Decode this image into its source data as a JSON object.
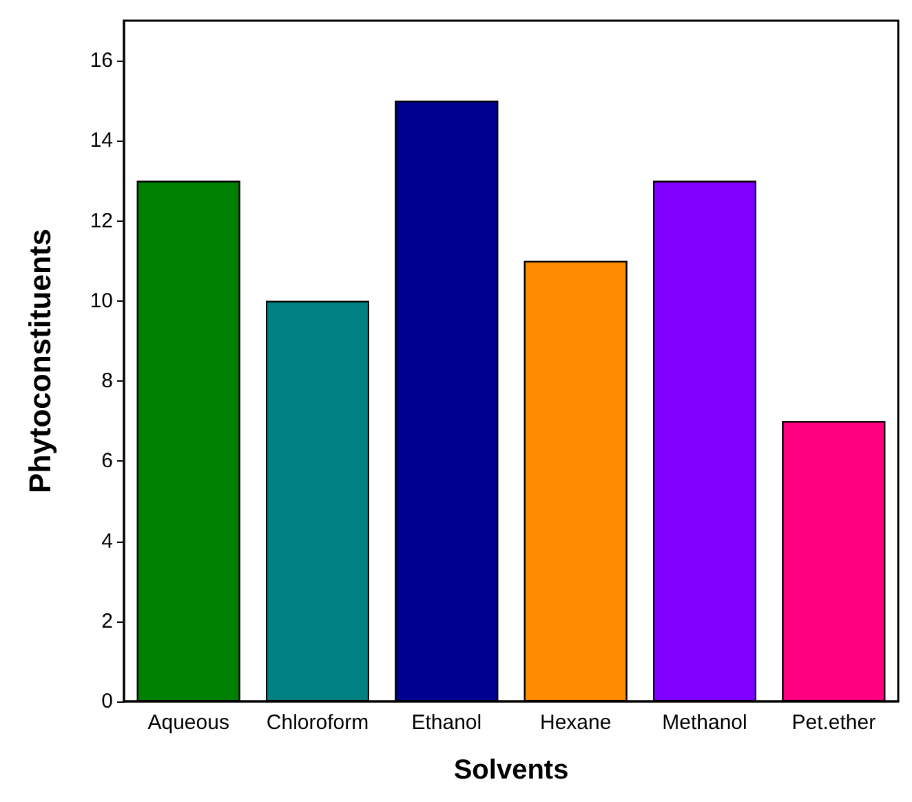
{
  "chart_data": {
    "type": "bar",
    "xlabel": "Solvents",
    "ylabel": "Phytoconstituents",
    "categories": [
      "Aqueous",
      "Chloroform",
      "Ethanol",
      "Hexane",
      "Methanol",
      "Pet.ether"
    ],
    "values": [
      13,
      10,
      15,
      11,
      13,
      7
    ],
    "colors": [
      "#008000",
      "#008080",
      "#000090",
      "#ff8c00",
      "#8000ff",
      "#ff0080"
    ],
    "ylim": [
      0,
      17
    ],
    "yticks": [
      0,
      2,
      4,
      6,
      8,
      10,
      12,
      14,
      16
    ]
  }
}
